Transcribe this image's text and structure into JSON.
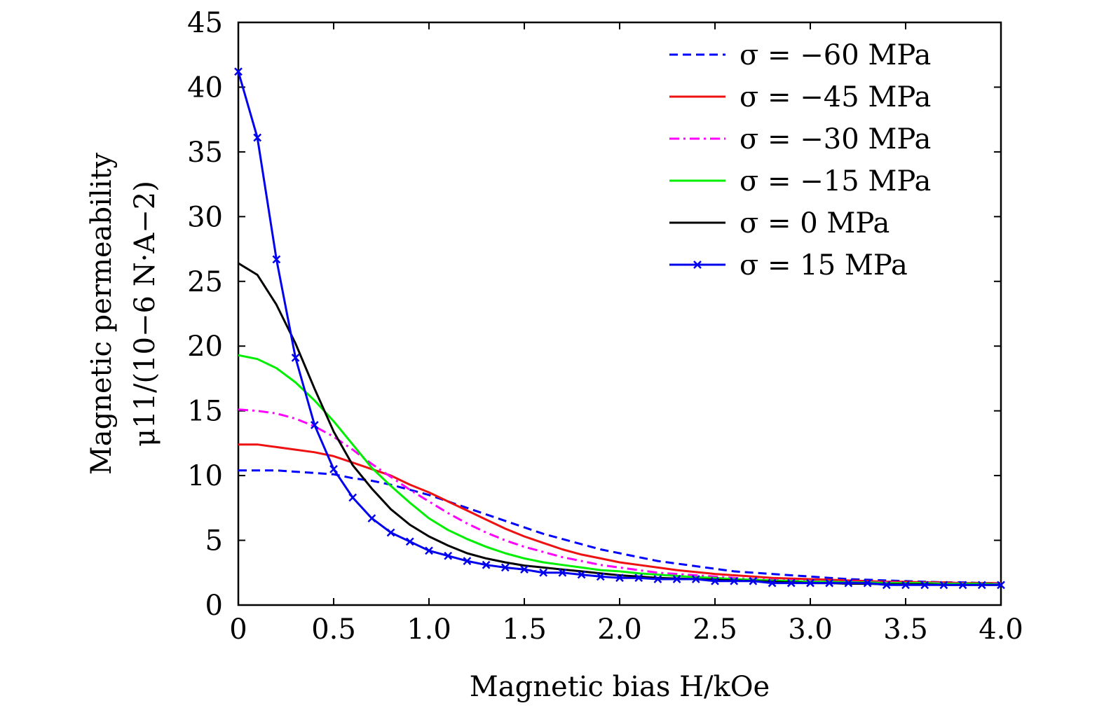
{
  "chart_data": {
    "type": "line",
    "xlabel": "Magnetic bias H/kOe",
    "ylabel_line1": "Magnetic permeability",
    "ylabel_line2": "μ11/(10−6 N·A−2)",
    "xlim": [
      0,
      4.0
    ],
    "ylim": [
      0,
      45
    ],
    "xticks": [
      "0",
      "0.5",
      "1.0",
      "1.5",
      "2.0",
      "2.5",
      "3.0",
      "3.5",
      "4.0"
    ],
    "yticks": [
      "0",
      "5",
      "10",
      "15",
      "20",
      "25",
      "30",
      "35",
      "40",
      "45"
    ],
    "grid": false,
    "legend_position": "top-right",
    "x": [
      0,
      0.1,
      0.2,
      0.3,
      0.4,
      0.5,
      0.6,
      0.7,
      0.8,
      0.9,
      1.0,
      1.1,
      1.2,
      1.3,
      1.4,
      1.5,
      1.6,
      1.7,
      1.8,
      1.9,
      2.0,
      2.1,
      2.2,
      2.3,
      2.4,
      2.5,
      2.6,
      2.7,
      2.8,
      2.9,
      3.0,
      3.1,
      3.2,
      3.3,
      3.4,
      3.5,
      3.6,
      3.7,
      3.8,
      3.9,
      4.0
    ],
    "series": [
      {
        "name": "σ = −60 MPa",
        "color": "#0000ff",
        "dash": "dashed",
        "marker": "none",
        "values": [
          10.4,
          10.4,
          10.4,
          10.3,
          10.2,
          10.1,
          9.8,
          9.6,
          9.3,
          8.9,
          8.5,
          8.0,
          7.5,
          7.0,
          6.5,
          6.0,
          5.5,
          5.1,
          4.7,
          4.3,
          4.0,
          3.7,
          3.4,
          3.2,
          3.0,
          2.8,
          2.6,
          2.5,
          2.4,
          2.3,
          2.2,
          2.1,
          2.0,
          1.95,
          1.9,
          1.85,
          1.8,
          1.75,
          1.75,
          1.7,
          1.7
        ]
      },
      {
        "name": "σ = −45 MPa",
        "color": "#ee1111",
        "dash": "solid",
        "marker": "none",
        "values": [
          12.4,
          12.4,
          12.2,
          12.0,
          11.8,
          11.5,
          11.0,
          10.5,
          10.0,
          9.3,
          8.7,
          8.0,
          7.3,
          6.6,
          5.9,
          5.3,
          4.8,
          4.3,
          3.9,
          3.6,
          3.3,
          3.1,
          2.9,
          2.7,
          2.55,
          2.4,
          2.3,
          2.2,
          2.1,
          2.05,
          2.0,
          1.95,
          1.9,
          1.85,
          1.8,
          1.8,
          1.75,
          1.75,
          1.7,
          1.7,
          1.7
        ]
      },
      {
        "name": "σ = −30 MPa",
        "color": "#ff00ff",
        "dash": "dashdot",
        "marker": "none",
        "values": [
          15.1,
          15.0,
          14.8,
          14.4,
          13.8,
          13.0,
          12.0,
          10.9,
          9.9,
          8.9,
          8.0,
          7.1,
          6.3,
          5.6,
          5.0,
          4.5,
          4.1,
          3.7,
          3.4,
          3.1,
          2.9,
          2.7,
          2.5,
          2.4,
          2.3,
          2.2,
          2.1,
          2.0,
          1.95,
          1.9,
          1.85,
          1.8,
          1.8,
          1.75,
          1.75,
          1.7,
          1.7,
          1.7,
          1.65,
          1.65,
          1.65
        ]
      },
      {
        "name": "σ = −15 MPa",
        "color": "#00ee00",
        "dash": "solid",
        "marker": "none",
        "values": [
          19.3,
          19.0,
          18.3,
          17.2,
          15.8,
          14.2,
          12.4,
          10.6,
          9.2,
          7.9,
          6.7,
          5.8,
          5.1,
          4.5,
          4.0,
          3.6,
          3.3,
          3.1,
          2.9,
          2.7,
          2.6,
          2.45,
          2.35,
          2.25,
          2.15,
          2.1,
          2.0,
          1.95,
          1.9,
          1.85,
          1.8,
          1.8,
          1.75,
          1.75,
          1.7,
          1.7,
          1.7,
          1.65,
          1.65,
          1.65,
          1.6
        ]
      },
      {
        "name": "σ = 0 MPa",
        "color": "#000000",
        "dash": "solid",
        "marker": "none",
        "values": [
          26.4,
          25.5,
          23.2,
          20.2,
          16.7,
          13.4,
          10.8,
          9.0,
          7.4,
          6.2,
          5.3,
          4.6,
          4.0,
          3.6,
          3.3,
          3.05,
          2.9,
          2.75,
          2.6,
          2.45,
          2.3,
          2.2,
          2.1,
          2.05,
          2.0,
          1.95,
          1.9,
          1.85,
          1.8,
          1.75,
          1.7,
          1.7,
          1.65,
          1.65,
          1.6,
          1.6,
          1.6,
          1.55,
          1.55,
          1.55,
          1.55
        ]
      },
      {
        "name": "σ = 15 MPa",
        "color": "#0000ee",
        "dash": "solid",
        "marker": "x",
        "values": [
          41.2,
          36.1,
          26.7,
          19.1,
          13.9,
          10.5,
          8.3,
          6.7,
          5.6,
          4.9,
          4.2,
          3.8,
          3.4,
          3.1,
          2.9,
          2.75,
          2.5,
          2.5,
          2.35,
          2.2,
          2.1,
          2.1,
          2.0,
          2.0,
          2.0,
          1.85,
          1.85,
          1.85,
          1.7,
          1.7,
          1.7,
          1.7,
          1.7,
          1.7,
          1.55,
          1.55,
          1.55,
          1.55,
          1.55,
          1.55,
          1.55
        ]
      }
    ]
  }
}
